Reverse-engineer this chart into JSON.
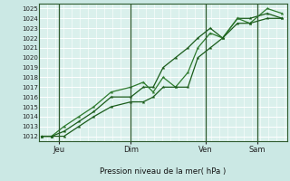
{
  "bg_color": "#cbe8e4",
  "plot_bg_color": "#daf0ec",
  "grid_color": "#ffffff",
  "line_color1": "#1a5c1a",
  "line_color2": "#2d7a2d",
  "line_color3": "#1a5c1a",
  "ylabel_text": "Pression niveau de la mer( hPa )",
  "yticks": [
    1012,
    1013,
    1014,
    1015,
    1016,
    1017,
    1018,
    1019,
    1020,
    1021,
    1022,
    1023,
    1024,
    1025
  ],
  "ylim": [
    1011.5,
    1025.5
  ],
  "xtick_labels": [
    "Jeu",
    "Dim",
    "Ven",
    "Sam"
  ],
  "xlim": [
    0.0,
    1.0
  ],
  "vline_x": [
    0.08,
    0.37,
    0.67,
    0.88
  ],
  "xtick_positions": [
    0.08,
    0.37,
    0.67,
    0.88
  ],
  "series1_x": [
    0.01,
    0.05,
    0.1,
    0.16,
    0.22,
    0.29,
    0.37,
    0.42,
    0.46,
    0.5,
    0.55,
    0.6,
    0.64,
    0.69,
    0.74,
    0.8,
    0.85,
    0.92,
    0.98
  ],
  "series1_y": [
    1012.0,
    1012.0,
    1012.5,
    1013.5,
    1014.5,
    1016.0,
    1016.0,
    1017.0,
    1017.0,
    1019.0,
    1020.0,
    1021.0,
    1022.0,
    1023.0,
    1022.0,
    1024.0,
    1024.0,
    1024.5,
    1024.0
  ],
  "series2_x": [
    0.01,
    0.05,
    0.1,
    0.16,
    0.22,
    0.29,
    0.37,
    0.42,
    0.46,
    0.5,
    0.55,
    0.6,
    0.64,
    0.69,
    0.74,
    0.8,
    0.85,
    0.92,
    0.98
  ],
  "series2_y": [
    1012.0,
    1012.0,
    1013.0,
    1014.0,
    1015.0,
    1016.5,
    1017.0,
    1017.5,
    1016.5,
    1018.0,
    1017.0,
    1018.5,
    1021.0,
    1022.5,
    1022.0,
    1024.0,
    1023.5,
    1025.0,
    1024.5
  ],
  "series3_x": [
    0.01,
    0.05,
    0.1,
    0.16,
    0.22,
    0.29,
    0.37,
    0.42,
    0.46,
    0.5,
    0.55,
    0.6,
    0.64,
    0.69,
    0.74,
    0.8,
    0.85,
    0.92,
    0.98
  ],
  "series3_y": [
    1012.0,
    1012.0,
    1012.0,
    1013.0,
    1014.0,
    1015.0,
    1015.5,
    1015.5,
    1016.0,
    1017.0,
    1017.0,
    1017.0,
    1020.0,
    1021.0,
    1022.0,
    1023.5,
    1023.5,
    1024.0,
    1024.0
  ]
}
